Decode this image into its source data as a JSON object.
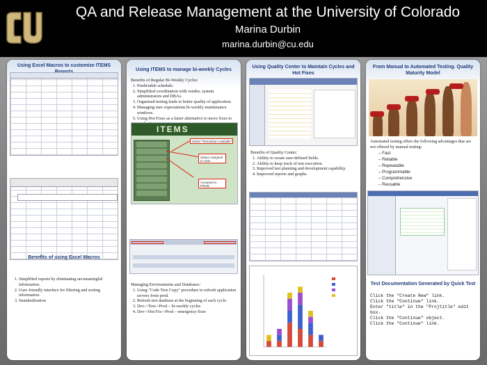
{
  "header": {
    "title": "QA and Release Management at the University of Colorado",
    "author": "Marina Durbin",
    "email": "marina.durbin@cu.edu"
  },
  "col1": {
    "heading": "Using Excel Macros to customize ITEMS Reports",
    "benefits_heading": "Benefits of using Excel Macros",
    "benefits": [
      "Simplified reports by eliminating un-meaningful information.",
      "User–friendly interface for filtering and sorting information.",
      "Standardization"
    ]
  },
  "col2": {
    "heading": "Using ITEMS to manage bi-weekly Cycles",
    "intro": "Benefits of Regular Bi-Weekly Cycles:",
    "benefits": [
      "Predictable schedule.",
      "Simplified coordination with vendor, system administrators and DBAs.",
      "Organized testing leads to better quality of application.",
      "Managing user expectations bi-weekly maintenance windows.",
      "Using Hot Fixes as a faster alternative to move fixes to production"
    ],
    "app_name": "ITEMS",
    "callouts": [
      "Select \"Resolution Available\"",
      "Status Assigned to User",
      "Accepted in PROD"
    ],
    "managing_intro": "Managing Environments and Databases:",
    "managing": [
      "Using \"Code Tree Copy\" procedure to refresh application servers from prod.",
      "Refresh test database at the beginning of each cycle.",
      "Dev->Test->Prod – bi-weekly cycles",
      "Dev->Hot Fix->Prod – emergency fixes"
    ]
  },
  "col3": {
    "heading": "Using Quality Center to Maintain Cycles and  Hot Fixes",
    "intro": "Benefits of Quality Center:",
    "benefits": [
      "Ability to create user-defined fields.",
      "Ability to keep track of test execution.",
      "Improved test planning and development capability.",
      "Improved reports and graphs."
    ]
  },
  "col4": {
    "heading": "From Manual to Automated Testing. Quality Maturity Model",
    "intro": "Automated testing offers the following advantages that are not offered by manual testing:",
    "advantages": [
      "Fast",
      "Reliable",
      "Repeatable",
      "Programmable",
      "Comprehensive",
      "Reusable"
    ],
    "doc_heading": "Test Documentation Generated by Quick Test",
    "steps": [
      "Click the \"Create New\" link.",
      "Click the \"Continue\" link.",
      "Enter \"title\" in the \"Projtitle\" edit box.",
      "Click the \"Continue\" object.",
      "Click the \"Continue\" link."
    ]
  },
  "chart_data": {
    "type": "bar",
    "categories": [
      "1",
      "2",
      "3",
      "4",
      "5",
      "6"
    ],
    "series": [
      {
        "values": [
          1,
          1,
          4,
          3,
          2,
          1
        ],
        "color": "#d44a3a"
      },
      {
        "values": [
          0,
          1,
          2,
          4,
          2,
          1
        ],
        "color": "#3f5fcf"
      },
      {
        "values": [
          0,
          1,
          2,
          2,
          1,
          0
        ],
        "color": "#9a4fd0"
      },
      {
        "values": [
          1,
          0,
          1,
          1,
          1,
          0
        ],
        "color": "#e0c020"
      }
    ],
    "ylim": [
      0,
      12
    ]
  },
  "colors": {
    "header_bg": "#000000",
    "heading": "#1f3a7a",
    "panel_top": "#d7e2f2"
  }
}
